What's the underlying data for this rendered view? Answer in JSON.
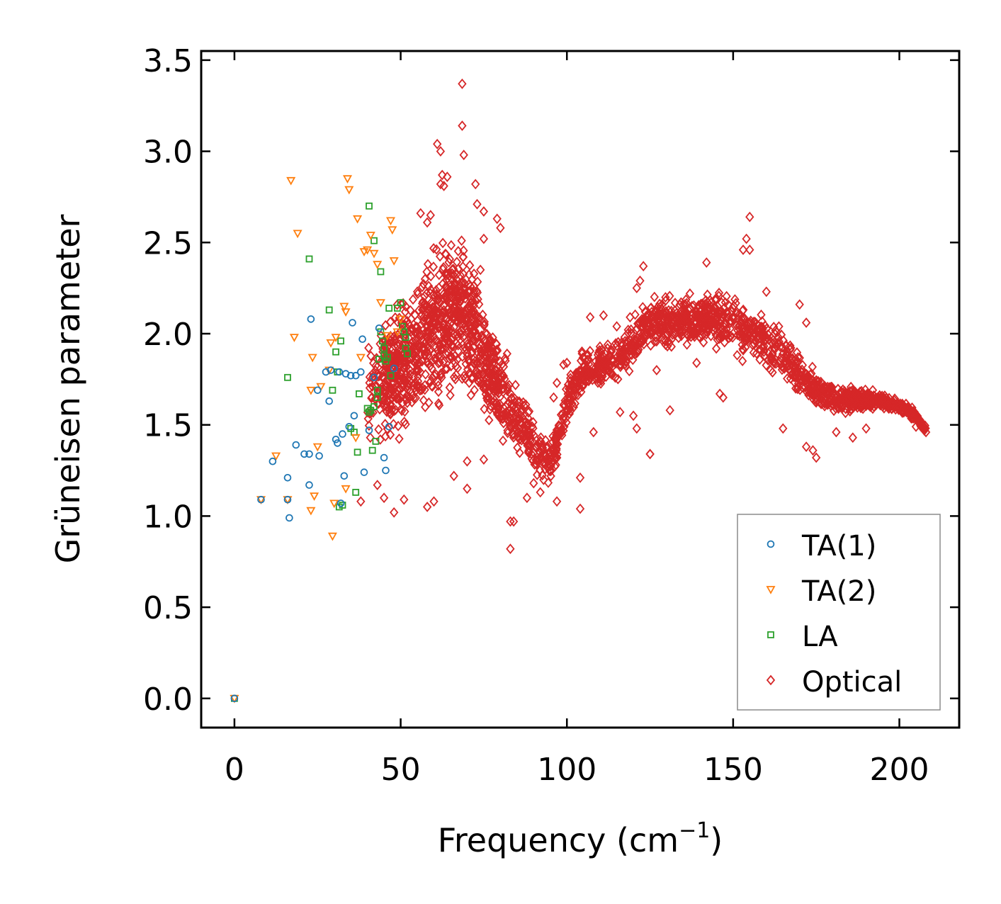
{
  "chart_data": {
    "type": "scatter",
    "xlabel": "Frequency (cm",
    "xlabel_sup": "−1",
    "xlabel_end": ")",
    "ylabel": "Grüneisen parameter",
    "xlim": [
      -10,
      218
    ],
    "ylim": [
      -0.16,
      3.55
    ],
    "xticks": [
      0,
      50,
      100,
      150,
      200
    ],
    "xtick_labels": [
      "0",
      "50",
      "100",
      "150",
      "200"
    ],
    "yticks": [
      0.0,
      0.5,
      1.0,
      1.5,
      2.0,
      2.5,
      3.0,
      3.5
    ],
    "ytick_labels": [
      "0.0",
      "0.5",
      "1.0",
      "1.5",
      "2.0",
      "2.5",
      "3.0",
      "3.5"
    ],
    "legend_position": "lower-right",
    "series": [
      {
        "name": "TA(1)",
        "marker": "circle",
        "color": "#1f77b4",
        "points": [
          [
            0,
            0.0
          ],
          [
            8,
            1.09
          ],
          [
            11.5,
            1.3
          ],
          [
            16,
            1.21
          ],
          [
            16,
            1.09
          ],
          [
            16.5,
            0.99
          ],
          [
            18.5,
            1.39
          ],
          [
            21,
            1.34
          ],
          [
            22.5,
            1.34
          ],
          [
            22.5,
            1.17
          ],
          [
            23,
            2.08
          ],
          [
            25,
            1.69
          ],
          [
            25.5,
            1.33
          ],
          [
            27.5,
            1.79
          ],
          [
            28.5,
            1.63
          ],
          [
            29,
            1.8
          ],
          [
            30.5,
            1.42
          ],
          [
            31,
            1.4
          ],
          [
            31.5,
            1.79
          ],
          [
            32,
            1.07
          ],
          [
            32.5,
            1.45
          ],
          [
            33,
            1.22
          ],
          [
            33.5,
            1.78
          ],
          [
            34.5,
            1.49
          ],
          [
            35,
            1.77
          ],
          [
            35.5,
            2.06
          ],
          [
            36,
            1.55
          ],
          [
            36.5,
            1.77
          ],
          [
            38,
            1.79
          ],
          [
            38.5,
            1.97
          ],
          [
            39,
            1.24
          ],
          [
            40.5,
            1.47
          ],
          [
            42,
            1.76
          ],
          [
            43.5,
            2.03
          ],
          [
            45,
            1.32
          ],
          [
            45.5,
            1.25
          ],
          [
            46.5,
            1.49
          ],
          [
            48,
            1.81
          ]
        ]
      },
      {
        "name": "TA(2)",
        "marker": "triangle-down",
        "color": "#ff7f0e",
        "points": [
          [
            0,
            0.0
          ],
          [
            8,
            1.09
          ],
          [
            12.5,
            1.33
          ],
          [
            16,
            1.09
          ],
          [
            17,
            2.84
          ],
          [
            18,
            1.98
          ],
          [
            19,
            2.55
          ],
          [
            23,
            1.03
          ],
          [
            23,
            1.69
          ],
          [
            23.5,
            1.87
          ],
          [
            24,
            1.11
          ],
          [
            25,
            1.38
          ],
          [
            26,
            1.71
          ],
          [
            28.5,
            1.8
          ],
          [
            29,
            1.95
          ],
          [
            29.5,
            0.89
          ],
          [
            30,
            1.07
          ],
          [
            30.5,
            1.98
          ],
          [
            33,
            2.15
          ],
          [
            33.5,
            2.12
          ],
          [
            33.5,
            1.15
          ],
          [
            34,
            2.85
          ],
          [
            34.5,
            2.79
          ],
          [
            36.5,
            1.43
          ],
          [
            37,
            2.63
          ],
          [
            38,
            1.87
          ],
          [
            39,
            2.45
          ],
          [
            40,
            2.46
          ],
          [
            41,
            2.54
          ],
          [
            42,
            2.44
          ],
          [
            43,
            2.38
          ],
          [
            44,
            2.17
          ],
          [
            46,
            1.99
          ],
          [
            47,
            2.62
          ],
          [
            47.5,
            2.57
          ],
          [
            48,
            2.4
          ],
          [
            49,
            2.01
          ],
          [
            50,
            2.08
          ]
        ]
      },
      {
        "name": "LA",
        "marker": "square",
        "color": "#2ca02c",
        "points": [
          [
            0,
            0.0
          ],
          [
            16,
            1.76
          ],
          [
            22.5,
            2.41
          ],
          [
            28.5,
            2.13
          ],
          [
            29.5,
            1.69
          ],
          [
            30.5,
            1.9
          ],
          [
            31,
            1.79
          ],
          [
            31.5,
            1.05
          ],
          [
            32,
            1.96
          ],
          [
            32.5,
            1.06
          ],
          [
            35,
            1.48
          ],
          [
            36,
            1.46
          ],
          [
            36.5,
            1.13
          ],
          [
            37,
            1.35
          ],
          [
            37.5,
            1.67
          ],
          [
            40,
            1.59
          ],
          [
            40.5,
            2.7
          ],
          [
            40.5,
            1.57
          ],
          [
            41,
            1.58
          ],
          [
            41.5,
            1.36
          ],
          [
            42,
            1.6
          ],
          [
            42,
            2.51
          ],
          [
            42.5,
            1.41
          ],
          [
            43,
            1.65
          ],
          [
            43,
            1.69
          ],
          [
            43.5,
            1.86
          ],
          [
            44,
            2.34
          ],
          [
            44,
            2.01
          ],
          [
            44.5,
            1.96
          ],
          [
            45,
            1.92
          ],
          [
            45,
            1.88
          ],
          [
            45.5,
            1.85
          ],
          [
            46,
            1.87
          ],
          [
            46.5,
            2.14
          ],
          [
            47,
            1.77
          ],
          [
            49,
            2.14
          ],
          [
            50,
            2.17
          ],
          [
            50.5,
            2.04
          ],
          [
            51,
            2.01
          ],
          [
            51.5,
            1.98
          ],
          [
            51.5,
            1.92
          ],
          [
            52,
            1.89
          ]
        ]
      },
      {
        "name": "Optical",
        "marker": "diamond",
        "color": "#d62728",
        "trend": [
          [
            40,
            1.7
          ],
          [
            50,
            1.8
          ],
          [
            55,
            1.9
          ],
          [
            60,
            2.05
          ],
          [
            65,
            2.1
          ],
          [
            68,
            2.15
          ],
          [
            72,
            2.0
          ],
          [
            78,
            1.75
          ],
          [
            85,
            1.52
          ],
          [
            90,
            1.38
          ],
          [
            95,
            1.28
          ],
          [
            100,
            1.6
          ],
          [
            105,
            1.8
          ],
          [
            110,
            1.82
          ],
          [
            115,
            1.85
          ],
          [
            120,
            1.95
          ],
          [
            125,
            2.05
          ],
          [
            130,
            2.05
          ],
          [
            135,
            2.07
          ],
          [
            140,
            2.08
          ],
          [
            145,
            2.08
          ],
          [
            150,
            2.05
          ],
          [
            155,
            2.0
          ],
          [
            160,
            1.95
          ],
          [
            165,
            1.88
          ],
          [
            170,
            1.78
          ],
          [
            175,
            1.7
          ],
          [
            180,
            1.65
          ],
          [
            185,
            1.64
          ],
          [
            190,
            1.64
          ],
          [
            195,
            1.63
          ],
          [
            200,
            1.6
          ],
          [
            205,
            1.55
          ],
          [
            208,
            1.47
          ]
        ],
        "spread": [
          [
            40,
            0.4
          ],
          [
            55,
            0.5
          ],
          [
            65,
            0.55
          ],
          [
            75,
            0.4
          ],
          [
            85,
            0.25
          ],
          [
            95,
            0.15
          ],
          [
            105,
            0.15
          ],
          [
            115,
            0.15
          ],
          [
            125,
            0.18
          ],
          [
            140,
            0.17
          ],
          [
            150,
            0.2
          ],
          [
            160,
            0.2
          ],
          [
            170,
            0.15
          ],
          [
            180,
            0.1
          ],
          [
            190,
            0.07
          ],
          [
            200,
            0.05
          ],
          [
            208,
            0.03
          ]
        ],
        "outliers": [
          [
            68.5,
            3.37
          ],
          [
            68.5,
            3.14
          ],
          [
            69,
            2.98
          ],
          [
            61,
            3.04
          ],
          [
            62,
            3.0
          ],
          [
            62.5,
            2.87
          ],
          [
            63,
            2.81
          ],
          [
            72.5,
            2.82
          ],
          [
            79,
            2.63
          ],
          [
            80,
            2.58
          ],
          [
            82,
            1.89
          ],
          [
            84,
            0.97
          ],
          [
            83,
            0.97
          ],
          [
            83,
            0.82
          ],
          [
            70,
            1.15
          ],
          [
            73,
            2.71
          ],
          [
            75,
            2.67
          ],
          [
            59,
            2.65
          ],
          [
            58,
            2.61
          ],
          [
            56,
            2.66
          ],
          [
            74,
            2.35
          ],
          [
            75,
            2.52
          ],
          [
            62,
            2.82
          ],
          [
            64,
            2.86
          ],
          [
            155,
            2.64
          ],
          [
            154,
            2.52
          ],
          [
            155,
            2.46
          ],
          [
            153,
            2.46
          ],
          [
            160,
            2.23
          ],
          [
            170,
            2.16
          ],
          [
            172,
            2.06
          ],
          [
            165,
            1.48
          ],
          [
            172,
            1.38
          ],
          [
            174,
            1.36
          ],
          [
            175,
            1.32
          ],
          [
            147,
            1.65
          ],
          [
            146,
            1.67
          ],
          [
            125,
            1.34
          ],
          [
            125,
            1.34
          ],
          [
            104,
            1.04
          ],
          [
            97,
            1.08
          ],
          [
            92,
            1.13
          ],
          [
            88,
            1.1
          ],
          [
            90,
            1.18
          ],
          [
            58,
            1.05
          ],
          [
            60,
            1.08
          ],
          [
            48,
            1.02
          ],
          [
            51,
            1.09
          ],
          [
            45,
            1.1
          ],
          [
            43,
            1.17
          ],
          [
            38,
            1.08
          ],
          [
            66,
            1.22
          ],
          [
            70,
            1.3
          ],
          [
            75,
            1.31
          ],
          [
            96,
            1.65
          ],
          [
            97,
            1.73
          ],
          [
            99,
            1.83
          ],
          [
            100,
            1.84
          ],
          [
            107,
            2.09
          ],
          [
            111,
            2.1
          ],
          [
            115,
            2.04
          ],
          [
            119,
            2.09
          ],
          [
            121,
            2.25
          ],
          [
            122,
            2.29
          ],
          [
            123,
            2.37
          ],
          [
            137,
            2.22
          ],
          [
            142,
            2.39
          ],
          [
            139,
            1.84
          ],
          [
            127,
            1.8
          ],
          [
            181,
            1.46
          ],
          [
            186,
            1.43
          ],
          [
            190,
            1.48
          ],
          [
            205,
            1.49
          ],
          [
            208,
            1.46
          ],
          [
            131,
            1.58
          ],
          [
            121,
            1.48
          ],
          [
            120,
            1.55
          ],
          [
            116,
            1.57
          ],
          [
            108,
            1.46
          ],
          [
            104,
            1.21
          ]
        ]
      }
    ]
  }
}
